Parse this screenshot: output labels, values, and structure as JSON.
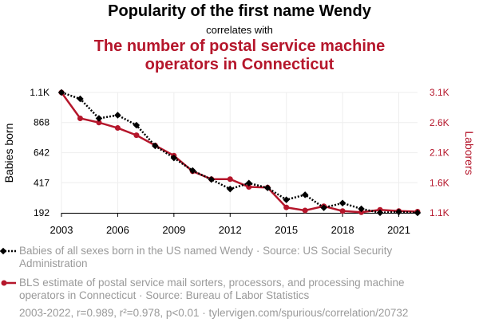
{
  "header": {
    "title": "Popularity of the first name Wendy",
    "connector": "correlates with",
    "subtitle_line1": "The number of postal service machine",
    "subtitle_line2": "operators in Connecticut"
  },
  "legend": {
    "series1_text": "Babies of all sexes born in the US named Wendy · Source: US Social Security Administration",
    "series2_text": "BLS estimate of postal service mail sorters, processors, and processing machine operators in Connecticut · Source: Bureau of Labor Statistics"
  },
  "footer": {
    "text": "2003-2022, r=0.989, r²=0.978, p<0.01 · tylervigen.com/spurious/correlation/20732"
  },
  "colors": {
    "series1": "#000000",
    "series2": "#b5162b",
    "text_muted": "#9a9a9a",
    "grid": "#eeeeee"
  },
  "chart_data": {
    "type": "line",
    "x": [
      2003,
      2004,
      2005,
      2006,
      2007,
      2008,
      2009,
      2010,
      2011,
      2012,
      2013,
      2014,
      2015,
      2016,
      2017,
      2018,
      2019,
      2020,
      2021,
      2022
    ],
    "x_ticks": [
      2003,
      2006,
      2009,
      2012,
      2015,
      2018,
      2021
    ],
    "grid": true,
    "left_axis": {
      "label": "Babies born",
      "range": [
        192,
        1093
      ],
      "ticks": [
        192,
        417,
        642,
        868,
        1093
      ],
      "tick_labels": [
        "192",
        "417",
        "642",
        "868",
        "1.1K"
      ]
    },
    "right_axis": {
      "label": "Laborers",
      "range": [
        1100,
        3100
      ],
      "ticks": [
        1100,
        1600,
        2100,
        2600,
        3100
      ],
      "tick_labels": [
        "1.1K",
        "1.6K",
        "2.1K",
        "2.6K",
        "3.1K"
      ]
    },
    "series": [
      {
        "axis": "left",
        "style": "dotted-diamond",
        "values": [
          1093,
          1045,
          899,
          923,
          848,
          693,
          603,
          508,
          442,
          370,
          414,
          379,
          290,
          327,
          230,
          265,
          222,
          193,
          199,
          192
        ]
      },
      {
        "axis": "right",
        "style": "solid-circle",
        "values": [
          3100,
          2670,
          2600,
          2510,
          2390,
          2220,
          2050,
          1790,
          1660,
          1660,
          1530,
          1520,
          1190,
          1140,
          1210,
          1130,
          1110,
          1150,
          1130,
          1120
        ]
      }
    ]
  }
}
